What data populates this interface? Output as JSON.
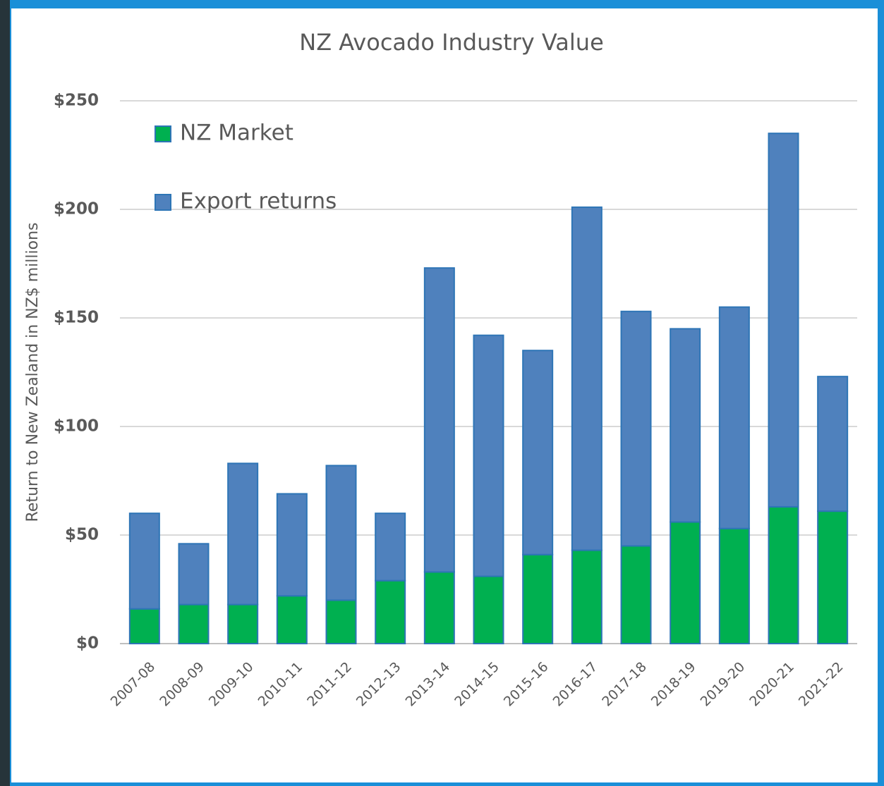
{
  "chart_data": {
    "type": "stacked_bar",
    "title": "NZ Avocado Industry Value",
    "y_label": "Return to New Zealand in NZ$ millions",
    "categories": [
      "2007-08",
      "2008-09",
      "2009-10",
      "2010-11",
      "2011-12",
      "2012-13",
      "2013-14",
      "2014-15",
      "2015-16",
      "2016-17",
      "2017-18",
      "2018-19",
      "2019-20",
      "2020-21",
      "2021-22"
    ],
    "series": [
      {
        "name": "NZ Market",
        "color": "#00b050",
        "values": [
          16,
          18,
          18,
          22,
          20,
          29,
          33,
          31,
          41,
          43,
          45,
          56,
          53,
          63,
          61
        ]
      },
      {
        "name": "Export returns",
        "color": "#4f81bd",
        "values": [
          44,
          28,
          65,
          47,
          62,
          31,
          140,
          111,
          94,
          158,
          108,
          89,
          102,
          172,
          62
        ]
      }
    ],
    "ylim": [
      0,
      250
    ],
    "yticks": [
      {
        "value": 0,
        "label": "$0"
      },
      {
        "value": 50,
        "label": "$50"
      },
      {
        "value": 100,
        "label": "$100"
      },
      {
        "value": 150,
        "label": "$150"
      },
      {
        "value": 200,
        "label": "$200"
      },
      {
        "value": 250,
        "label": "$250"
      }
    ],
    "grid": true,
    "legend": "upper-left"
  }
}
